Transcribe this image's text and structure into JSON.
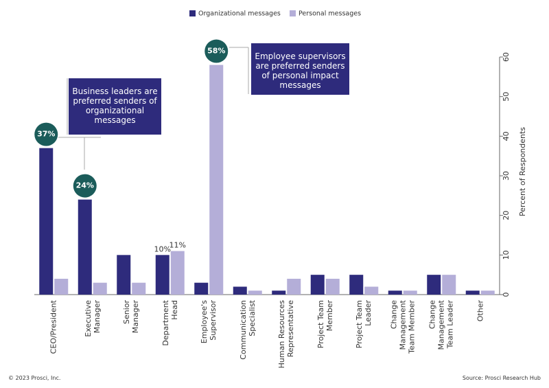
{
  "chart_data": {
    "type": "bar",
    "categories": [
      "CEO/President",
      "Executive\nManager",
      "Senior\nManager",
      "Department\nHead",
      "Employee's\nSupervisor",
      "Communication\nSpecialist",
      "Human Resources\nRepresentative",
      "Project Team\nMember",
      "Project Team\nLeader",
      "Change\nManagement\nTeam Member",
      "Change\nManagement\nTeam Leader",
      "Other"
    ],
    "series": [
      {
        "name": "Organizational messages",
        "color": "#2e2b7c",
        "values": [
          37,
          24,
          10,
          10,
          3,
          2,
          1,
          5,
          5,
          1,
          5,
          1
        ],
        "value_labels": [
          "37%",
          "24%",
          null,
          "10%",
          null,
          null,
          null,
          null,
          null,
          null,
          null,
          null
        ]
      },
      {
        "name": "Personal messages",
        "color": "#b4aed8",
        "values": [
          4,
          3,
          3,
          11,
          58,
          1,
          4,
          4,
          2,
          1,
          5,
          1
        ],
        "value_labels": [
          null,
          null,
          null,
          "11%",
          "58%",
          null,
          null,
          null,
          null,
          null,
          null,
          null
        ]
      }
    ],
    "ylim": [
      0,
      60
    ],
    "yticks": [
      0,
      10,
      20,
      30,
      40,
      50,
      60
    ],
    "ylabel": "Percent of Respondents",
    "annotations": [
      "Business leaders are\npreferred senders of\norganizational\nmessages",
      "Employee supervisors\nare preferred senders\nof personal impact\nmessages"
    ],
    "copyright": "© 2023 Prosci, Inc.",
    "source": "Source: Prosci Research Hub"
  }
}
